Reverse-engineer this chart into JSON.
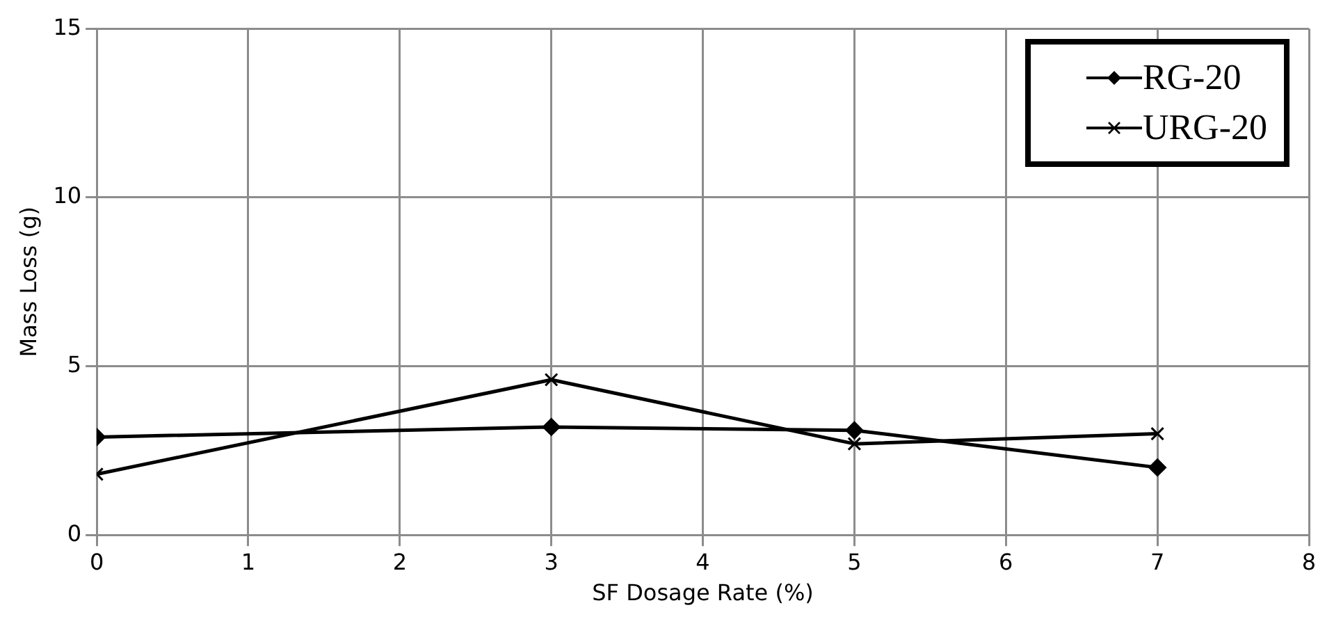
{
  "chart_data": {
    "type": "line",
    "xlabel": "SF Dosage Rate (%)",
    "ylabel": "Mass Loss (g)",
    "x": [
      0,
      3,
      5,
      7
    ],
    "series": [
      {
        "name": "RG-20",
        "color": "#000000",
        "marker": "diamond",
        "values": [
          2.9,
          3.2,
          3.1,
          2.0
        ]
      },
      {
        "name": "URG-20",
        "color": "#000000",
        "marker": "cross",
        "values": [
          1.8,
          4.6,
          2.7,
          3.0
        ]
      }
    ],
    "xlim": [
      0,
      8
    ],
    "xticks": [
      0,
      1,
      2,
      3,
      4,
      5,
      6,
      7,
      8
    ],
    "ylim": [
      0,
      15
    ],
    "yticks": [
      0,
      5,
      10,
      15
    ],
    "grid": true,
    "legend": "top right",
    "line_style": "solid"
  }
}
